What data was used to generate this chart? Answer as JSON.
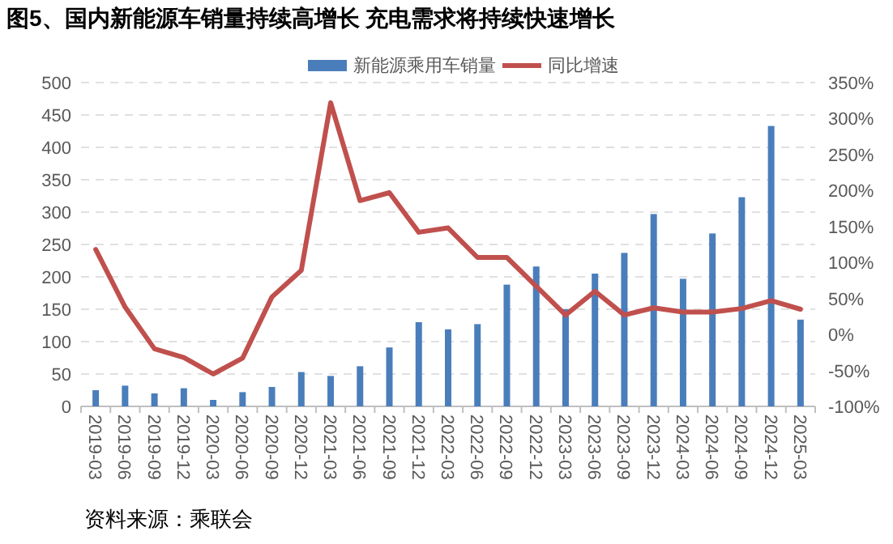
{
  "chart_data": {
    "type": "bar",
    "title": "图5、国内新能源车销量持续高增长 充电需求将持续快速增长",
    "categories": [
      "2019-03",
      "2019-06",
      "2019-09",
      "2019-12",
      "2020-03",
      "2020-06",
      "2020-09",
      "2020-12",
      "2021-03",
      "2021-06",
      "2021-09",
      "2021-12",
      "2022-03",
      "2022-06",
      "2022-09",
      "2022-12",
      "2023-03",
      "2023-06",
      "2023-09",
      "2023-12",
      "2024-03",
      "2024-06",
      "2024-09",
      "2024-12",
      "2025-03"
    ],
    "series": [
      {
        "name": "新能源乘用车销量",
        "color": "#4a7ebb",
        "values": [
          25,
          32,
          20,
          28,
          10,
          22,
          30,
          53,
          47,
          62,
          91,
          130,
          119,
          127,
          188,
          216,
          150,
          205,
          237,
          297,
          197,
          267,
          323,
          433,
          134
        ]
      },
      {
        "name": "同比增速",
        "type": "line",
        "axis": "y2",
        "color": "#c0504d",
        "values": [
          118,
          38,
          -20,
          -32,
          -55,
          -33,
          52,
          89,
          322,
          186,
          197,
          142,
          148,
          107,
          107,
          67,
          27,
          60,
          27,
          37,
          31,
          31,
          36,
          47,
          35
        ]
      }
    ],
    "ylim": [
      0,
      500
    ],
    "yticks": [
      0,
      50,
      100,
      150,
      200,
      250,
      300,
      350,
      400,
      450,
      500
    ],
    "y2lim": [
      -100,
      350
    ],
    "y2ticks": [
      {
        "value": -100,
        "label": "-100%"
      },
      {
        "value": -50,
        "label": "-50%"
      },
      {
        "value": 0,
        "label": "0%"
      },
      {
        "value": 50,
        "label": "50%"
      },
      {
        "value": 100,
        "label": "100%"
      },
      {
        "value": 150,
        "label": "150%"
      },
      {
        "value": 200,
        "label": "200%"
      },
      {
        "value": 250,
        "label": "250%"
      },
      {
        "value": 300,
        "label": "300%"
      },
      {
        "value": 350,
        "label": "350%"
      }
    ],
    "grid": "y",
    "legend": "top",
    "marker": "none",
    "line_style": "solid",
    "annotations": [
      "资料来源：乘联会"
    ]
  }
}
